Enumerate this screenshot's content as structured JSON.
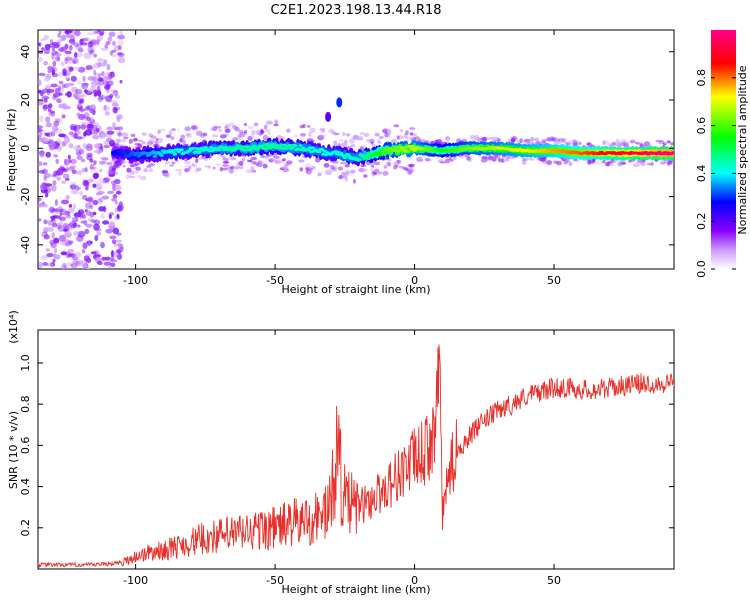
{
  "title": "C2E1.2023.198.13.44.R18",
  "colors": {
    "snr_line": "#e8302a",
    "colorbar": [
      "#ffffff",
      "#8800ff",
      "#0000ff",
      "#00ffff",
      "#00ff00",
      "#ffff00",
      "#ff0000",
      "#ff00aa"
    ]
  },
  "chart_data": [
    {
      "type": "heatmap",
      "xlabel": "Height of straight line (km)",
      "ylabel": "Frequency (Hz)",
      "xlim": [
        -135,
        93
      ],
      "ylim": [
        -50,
        49
      ],
      "x_ticks": [
        -100,
        -50,
        0,
        50
      ],
      "x_tick_labels": [
        "-100",
        "-50",
        "0",
        "50"
      ],
      "y_ticks": [
        -40,
        -20,
        0,
        20,
        40
      ],
      "y_tick_labels": [
        "-40",
        "-20",
        "0",
        "20",
        "40"
      ],
      "grid": false,
      "colorbar": {
        "label": "Normalized spectral amplitude",
        "range": [
          0,
          1
        ],
        "ticks": [
          0.0,
          0.2,
          0.4,
          0.6,
          0.8
        ],
        "tick_labels": [
          "0.0",
          "0.2",
          "0.4",
          "0.6",
          "0.8"
        ]
      },
      "ridge": {
        "x": [
          -108,
          -100,
          -90,
          -80,
          -70,
          -60,
          -50,
          -40,
          -30,
          -20,
          -10,
          0,
          10,
          20,
          30,
          40,
          50,
          60,
          70,
          80,
          93
        ],
        "freq": [
          -2,
          -3,
          -2,
          -1,
          0,
          0,
          1,
          0,
          -2,
          -4,
          -1,
          0,
          -1,
          0,
          0,
          -1,
          -1,
          -2,
          -2,
          -2,
          -2
        ],
        "amplitude": [
          0.25,
          0.3,
          0.35,
          0.38,
          0.4,
          0.42,
          0.42,
          0.4,
          0.38,
          0.4,
          0.55,
          0.62,
          0.5,
          0.58,
          0.62,
          0.66,
          0.7,
          0.74,
          0.8,
          0.86,
          0.9
        ]
      },
      "features": [
        {
          "x": -27,
          "freq": 19,
          "amplitude": 0.3
        },
        {
          "x": -31,
          "freq": 13,
          "amplitude": 0.2
        }
      ]
    },
    {
      "type": "line",
      "xlabel": "Height of straight line (km)",
      "ylabel": "SNR (10 * v/v)",
      "y_multiplier": "(x10⁴)",
      "xlim": [
        -135,
        93
      ],
      "ylim": [
        0,
        1.16
      ],
      "x_ticks": [
        -100,
        -50,
        0,
        50
      ],
      "x_tick_labels": [
        "-100",
        "-50",
        "0",
        "50"
      ],
      "y_ticks": [
        0.2,
        0.4,
        0.6,
        0.8,
        1.0
      ],
      "y_tick_labels": [
        "0.2",
        "0.4",
        "0.6",
        "0.8",
        "1.0"
      ],
      "grid": false,
      "series": [
        {
          "x": [
            -135,
            -125,
            -115,
            -105,
            -100,
            -95,
            -90,
            -85,
            -80,
            -75,
            -70,
            -65,
            -60,
            -55,
            -50,
            -45,
            -40,
            -35,
            -30,
            -28,
            -25,
            -22,
            -20,
            -15,
            -10,
            -5,
            0,
            5,
            8,
            9,
            10,
            12,
            15,
            20,
            25,
            30,
            35,
            40,
            45,
            50,
            55,
            60,
            65,
            70,
            75,
            80,
            85,
            90,
            93
          ],
          "y": [
            0.02,
            0.02,
            0.02,
            0.03,
            0.06,
            0.08,
            0.09,
            0.11,
            0.13,
            0.15,
            0.16,
            0.17,
            0.18,
            0.19,
            0.2,
            0.22,
            0.23,
            0.25,
            0.3,
            0.6,
            0.33,
            0.3,
            0.3,
            0.34,
            0.4,
            0.47,
            0.53,
            0.58,
            0.75,
            1.06,
            0.25,
            0.45,
            0.57,
            0.65,
            0.72,
            0.77,
            0.8,
            0.84,
            0.86,
            0.88,
            0.88,
            0.87,
            0.87,
            0.88,
            0.89,
            0.9,
            0.9,
            0.9,
            0.92
          ]
        }
      ]
    }
  ]
}
